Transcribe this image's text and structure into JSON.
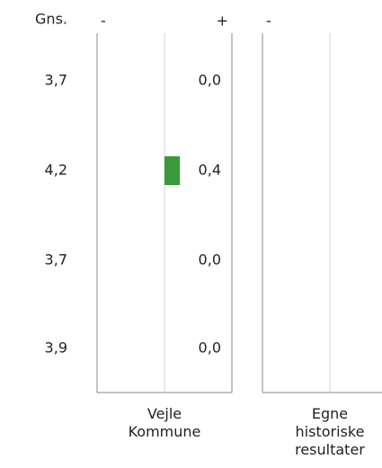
{
  "average_header": "Gns.",
  "averages": [
    "3,7",
    "4,2",
    "3,7",
    "3,9"
  ],
  "chart_data": [
    {
      "type": "bar",
      "minus_label": "-",
      "plus_label": "+",
      "xlabel": "Vejle Kommune",
      "values": [
        0,
        0.4,
        0,
        0
      ],
      "value_labels": [
        "0,0",
        "0,4",
        "0,0",
        "0,0"
      ],
      "color": "#3a9a3a",
      "xlim": [
        -1.75,
        1.75
      ]
    },
    {
      "type": "bar",
      "minus_label": "-",
      "xlabel": "Egne historiske resultater"
    }
  ]
}
